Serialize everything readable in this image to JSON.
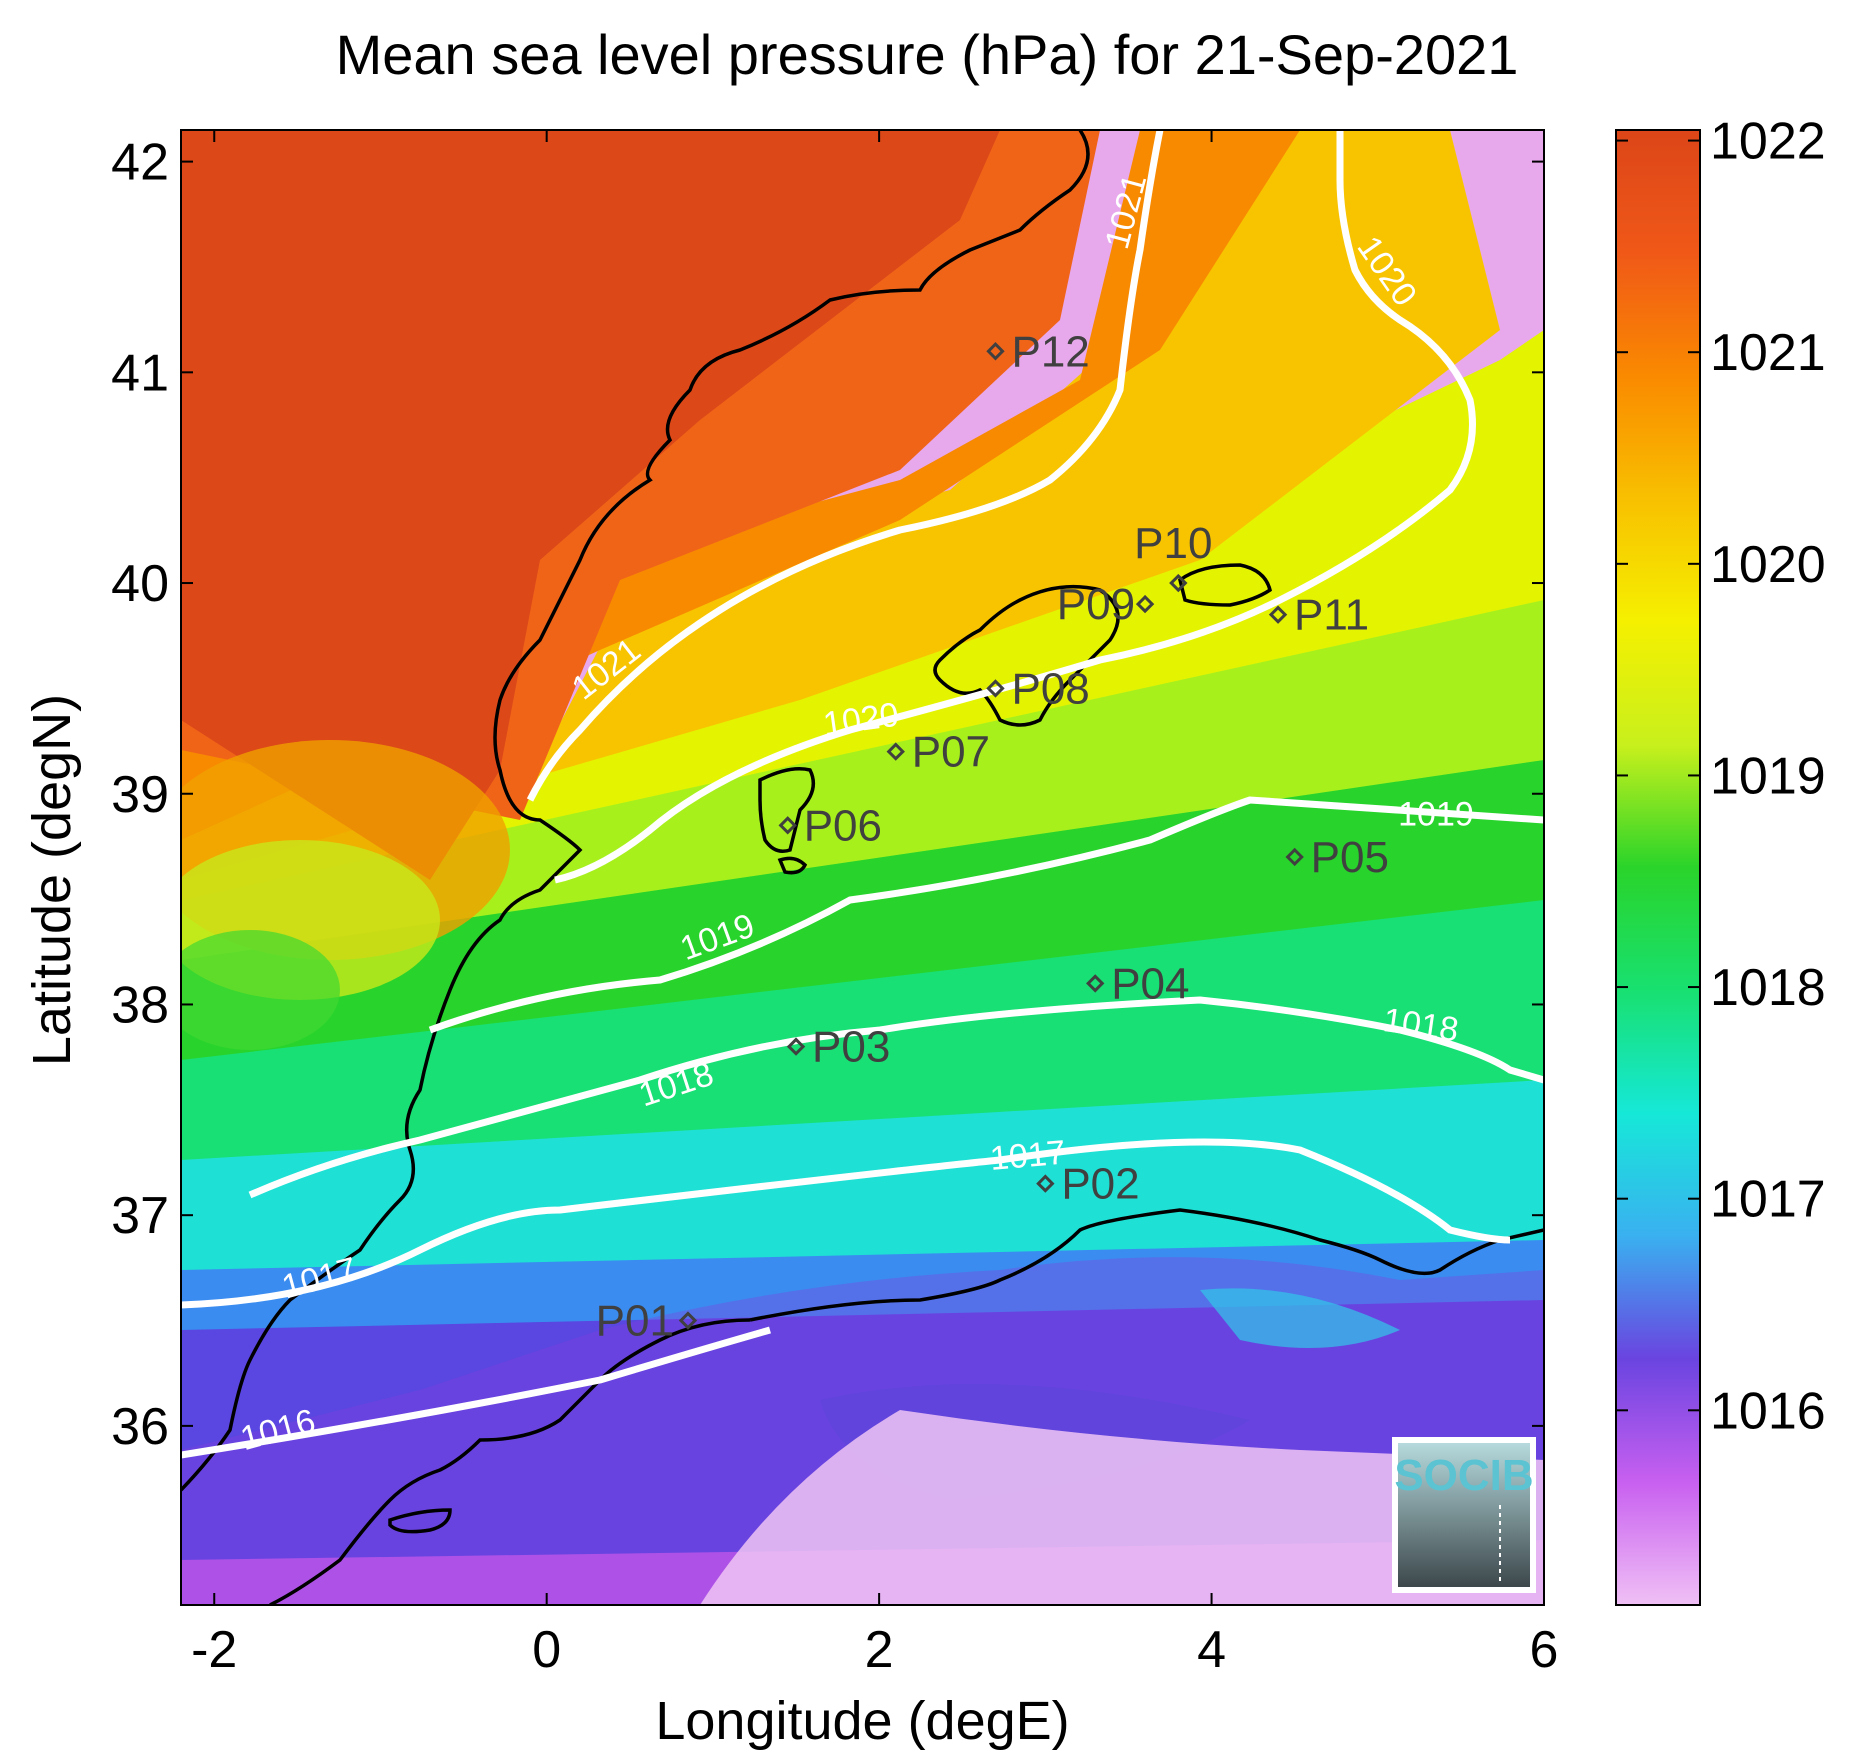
{
  "title": "Mean sea level pressure (hPa) for 21-Sep-2021",
  "xlabel": "Longitude (degE)",
  "ylabel": "Latitude (degN)",
  "logo_text": "SOCIB",
  "map": {
    "xlim": [
      -2.2,
      6.0
    ],
    "ylim": [
      35.15,
      42.15
    ],
    "x_ticks": [
      -2,
      0,
      2,
      4,
      6
    ],
    "y_ticks": [
      36,
      37,
      38,
      39,
      40,
      41,
      42
    ]
  },
  "colorbar": {
    "range": [
      1015.08,
      1022.05
    ],
    "ticks": [
      1016,
      1017,
      1018,
      1019,
      1020,
      1021,
      1022
    ],
    "colors": [
      "#f0c0f5",
      "#c860f0",
      "#6a44e0",
      "#3ab0f0",
      "#16e8d8",
      "#18e070",
      "#2ad42a",
      "#c8f01c",
      "#f5f000",
      "#f8c000",
      "#fa8a00",
      "#f05818",
      "#dc4618"
    ]
  },
  "contour_labels": [
    {
      "text": "1021",
      "lon": 0.4,
      "lat": 39.55,
      "angle": -38
    },
    {
      "text": "1021",
      "lon": 3.55,
      "lat": 41.75,
      "angle": -75
    },
    {
      "text": "1020",
      "lon": 1.9,
      "lat": 39.3,
      "angle": -8
    },
    {
      "text": "1020",
      "lon": 5.0,
      "lat": 41.45,
      "angle": 55
    },
    {
      "text": "1019",
      "lon": 1.05,
      "lat": 38.27,
      "angle": -20
    },
    {
      "text": "1019",
      "lon": 5.35,
      "lat": 38.85,
      "angle": 0
    },
    {
      "text": "1018",
      "lon": 0.8,
      "lat": 37.57,
      "angle": -18
    },
    {
      "text": "1018",
      "lon": 5.25,
      "lat": 37.85,
      "angle": 8
    },
    {
      "text": "1017",
      "lon": 2.9,
      "lat": 37.23,
      "angle": -5
    },
    {
      "text": "1017",
      "lon": -1.35,
      "lat": 36.65,
      "angle": -15
    },
    {
      "text": "1016",
      "lon": -1.6,
      "lat": 35.93,
      "angle": -15
    }
  ],
  "points": [
    {
      "name": "P01",
      "lon": 0.85,
      "lat": 36.5
    },
    {
      "name": "P02",
      "lon": 3.0,
      "lat": 37.15
    },
    {
      "name": "P03",
      "lon": 1.5,
      "lat": 37.8
    },
    {
      "name": "P04",
      "lon": 3.3,
      "lat": 38.1
    },
    {
      "name": "P05",
      "lon": 4.5,
      "lat": 38.7
    },
    {
      "name": "P06",
      "lon": 1.45,
      "lat": 38.85
    },
    {
      "name": "P07",
      "lon": 2.1,
      "lat": 39.2
    },
    {
      "name": "P08",
      "lon": 2.7,
      "lat": 39.5
    },
    {
      "name": "P09",
      "lon": 3.6,
      "lat": 39.9
    },
    {
      "name": "P10",
      "lon": 3.8,
      "lat": 40.0
    },
    {
      "name": "P11",
      "lon": 4.4,
      "lat": 39.85
    },
    {
      "name": "P12",
      "lon": 2.7,
      "lat": 41.1
    }
  ]
}
